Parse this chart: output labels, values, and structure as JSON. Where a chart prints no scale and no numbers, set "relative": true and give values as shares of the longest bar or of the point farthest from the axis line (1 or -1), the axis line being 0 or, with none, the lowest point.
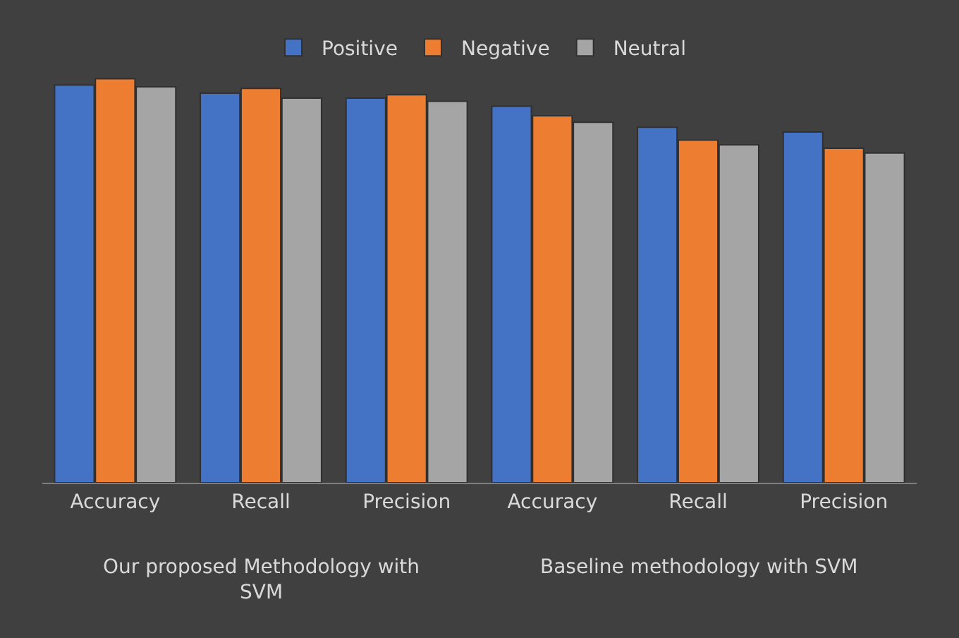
{
  "chart_data": {
    "type": "bar",
    "relative": true,
    "categories": [
      "Accuracy",
      "Recall",
      "Precision",
      "Accuracy",
      "Recall",
      "Precision"
    ],
    "series": [
      {
        "name": "Positive",
        "color": "#4472c4",
        "values": [
          0.984,
          0.964,
          0.952,
          0.932,
          0.88,
          0.868
        ]
      },
      {
        "name": "Negative",
        "color": "#ed7d31",
        "values": [
          1,
          0.976,
          0.96,
          0.908,
          0.848,
          0.828
        ]
      },
      {
        "name": "Neutral",
        "color": "#a5a5a5",
        "values": [
          0.98,
          0.952,
          0.944,
          0.892,
          0.836,
          0.816
        ]
      }
    ],
    "annotations": [
      "Our proposed Methodology with SVM",
      "Baseline methodology with SVM"
    ],
    "legend": "top",
    "grid": false
  }
}
